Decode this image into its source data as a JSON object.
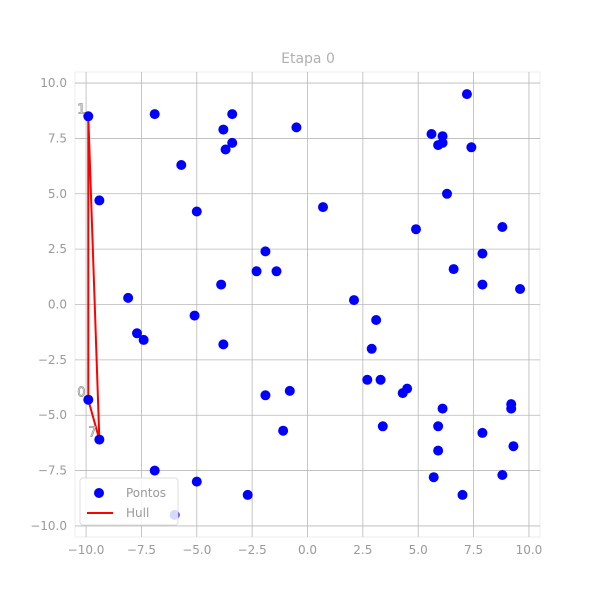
{
  "chart_data": {
    "type": "scatter",
    "title": "Etapa 0",
    "xlabel": "",
    "ylabel": "",
    "xlim": [
      -10.5,
      10.5
    ],
    "ylim": [
      -10.5,
      10.5
    ],
    "xticks": [
      -10.0,
      -7.5,
      -5.0,
      -2.5,
      0.0,
      2.5,
      5.0,
      7.5,
      10.0
    ],
    "yticks": [
      -10.0,
      -7.5,
      -5.0,
      -2.5,
      0.0,
      2.5,
      5.0,
      7.5,
      10.0
    ],
    "xtick_labels": [
      "−10.0",
      "−7.5",
      "−5.0",
      "−2.5",
      "0.0",
      "2.5",
      "5.0",
      "7.5",
      "10.0"
    ],
    "ytick_labels": [
      "−10.0",
      "−7.5",
      "−5.0",
      "−2.5",
      "0.0",
      "2.5",
      "5.0",
      "7.5",
      "10.0"
    ],
    "grid": true,
    "legend_position": "lower-left",
    "series": [
      {
        "name": "Pontos",
        "color": "#0000ff",
        "points": [
          [
            -9.9,
            8.5
          ],
          [
            -9.4,
            4.7
          ],
          [
            -9.9,
            -4.3
          ],
          [
            -9.4,
            -6.1
          ],
          [
            -8.1,
            0.3
          ],
          [
            -7.7,
            -1.3
          ],
          [
            -7.4,
            -1.6
          ],
          [
            -6.9,
            8.6
          ],
          [
            -6.9,
            -7.5
          ],
          [
            -5.7,
            6.3
          ],
          [
            -5.0,
            4.2
          ],
          [
            -5.1,
            -0.5
          ],
          [
            -5.0,
            -8.0
          ],
          [
            -3.8,
            7.9
          ],
          [
            -3.7,
            7.0
          ],
          [
            -3.4,
            7.3
          ],
          [
            -3.4,
            8.6
          ],
          [
            -3.9,
            0.9
          ],
          [
            -3.8,
            -1.8
          ],
          [
            -2.3,
            1.5
          ],
          [
            -1.9,
            2.4
          ],
          [
            -1.4,
            1.5
          ],
          [
            -1.9,
            -4.1
          ],
          [
            -0.8,
            -3.9
          ],
          [
            -1.1,
            -5.7
          ],
          [
            -0.5,
            8.0
          ],
          [
            -2.7,
            -8.6
          ],
          [
            -6.0,
            -9.5
          ],
          [
            0.7,
            4.4
          ],
          [
            2.1,
            0.2
          ],
          [
            3.1,
            -0.7
          ],
          [
            2.9,
            -2.0
          ],
          [
            2.7,
            -3.4
          ],
          [
            3.3,
            -3.4
          ],
          [
            3.4,
            -5.5
          ],
          [
            4.3,
            -4.0
          ],
          [
            4.5,
            -3.8
          ],
          [
            4.9,
            3.4
          ],
          [
            5.6,
            7.7
          ],
          [
            5.9,
            7.2
          ],
          [
            6.1,
            7.3
          ],
          [
            6.1,
            7.6
          ],
          [
            6.3,
            5.0
          ],
          [
            6.6,
            1.6
          ],
          [
            6.1,
            -4.7
          ],
          [
            5.9,
            -5.5
          ],
          [
            5.9,
            -6.6
          ],
          [
            5.7,
            -7.8
          ],
          [
            7.0,
            -8.6
          ],
          [
            7.2,
            9.5
          ],
          [
            7.4,
            7.1
          ],
          [
            7.9,
            2.3
          ],
          [
            7.9,
            0.9
          ],
          [
            7.9,
            -5.8
          ],
          [
            8.8,
            3.5
          ],
          [
            9.6,
            0.7
          ],
          [
            9.2,
            -4.7
          ],
          [
            9.2,
            -4.5
          ],
          [
            9.3,
            -6.4
          ],
          [
            8.8,
            -7.7
          ]
        ]
      },
      {
        "name": "Hull",
        "color": "#ff0000",
        "points": [
          [
            -9.9,
            -4.3
          ],
          [
            -9.9,
            8.5
          ],
          [
            -9.4,
            -6.1
          ],
          [
            -9.9,
            -4.3
          ]
        ]
      }
    ],
    "annotations": [
      {
        "text": "1",
        "x": -9.9,
        "y": 8.5
      },
      {
        "text": "0",
        "x": -9.9,
        "y": -4.3
      },
      {
        "text": "7",
        "x": -9.4,
        "y": -6.1
      }
    ]
  }
}
